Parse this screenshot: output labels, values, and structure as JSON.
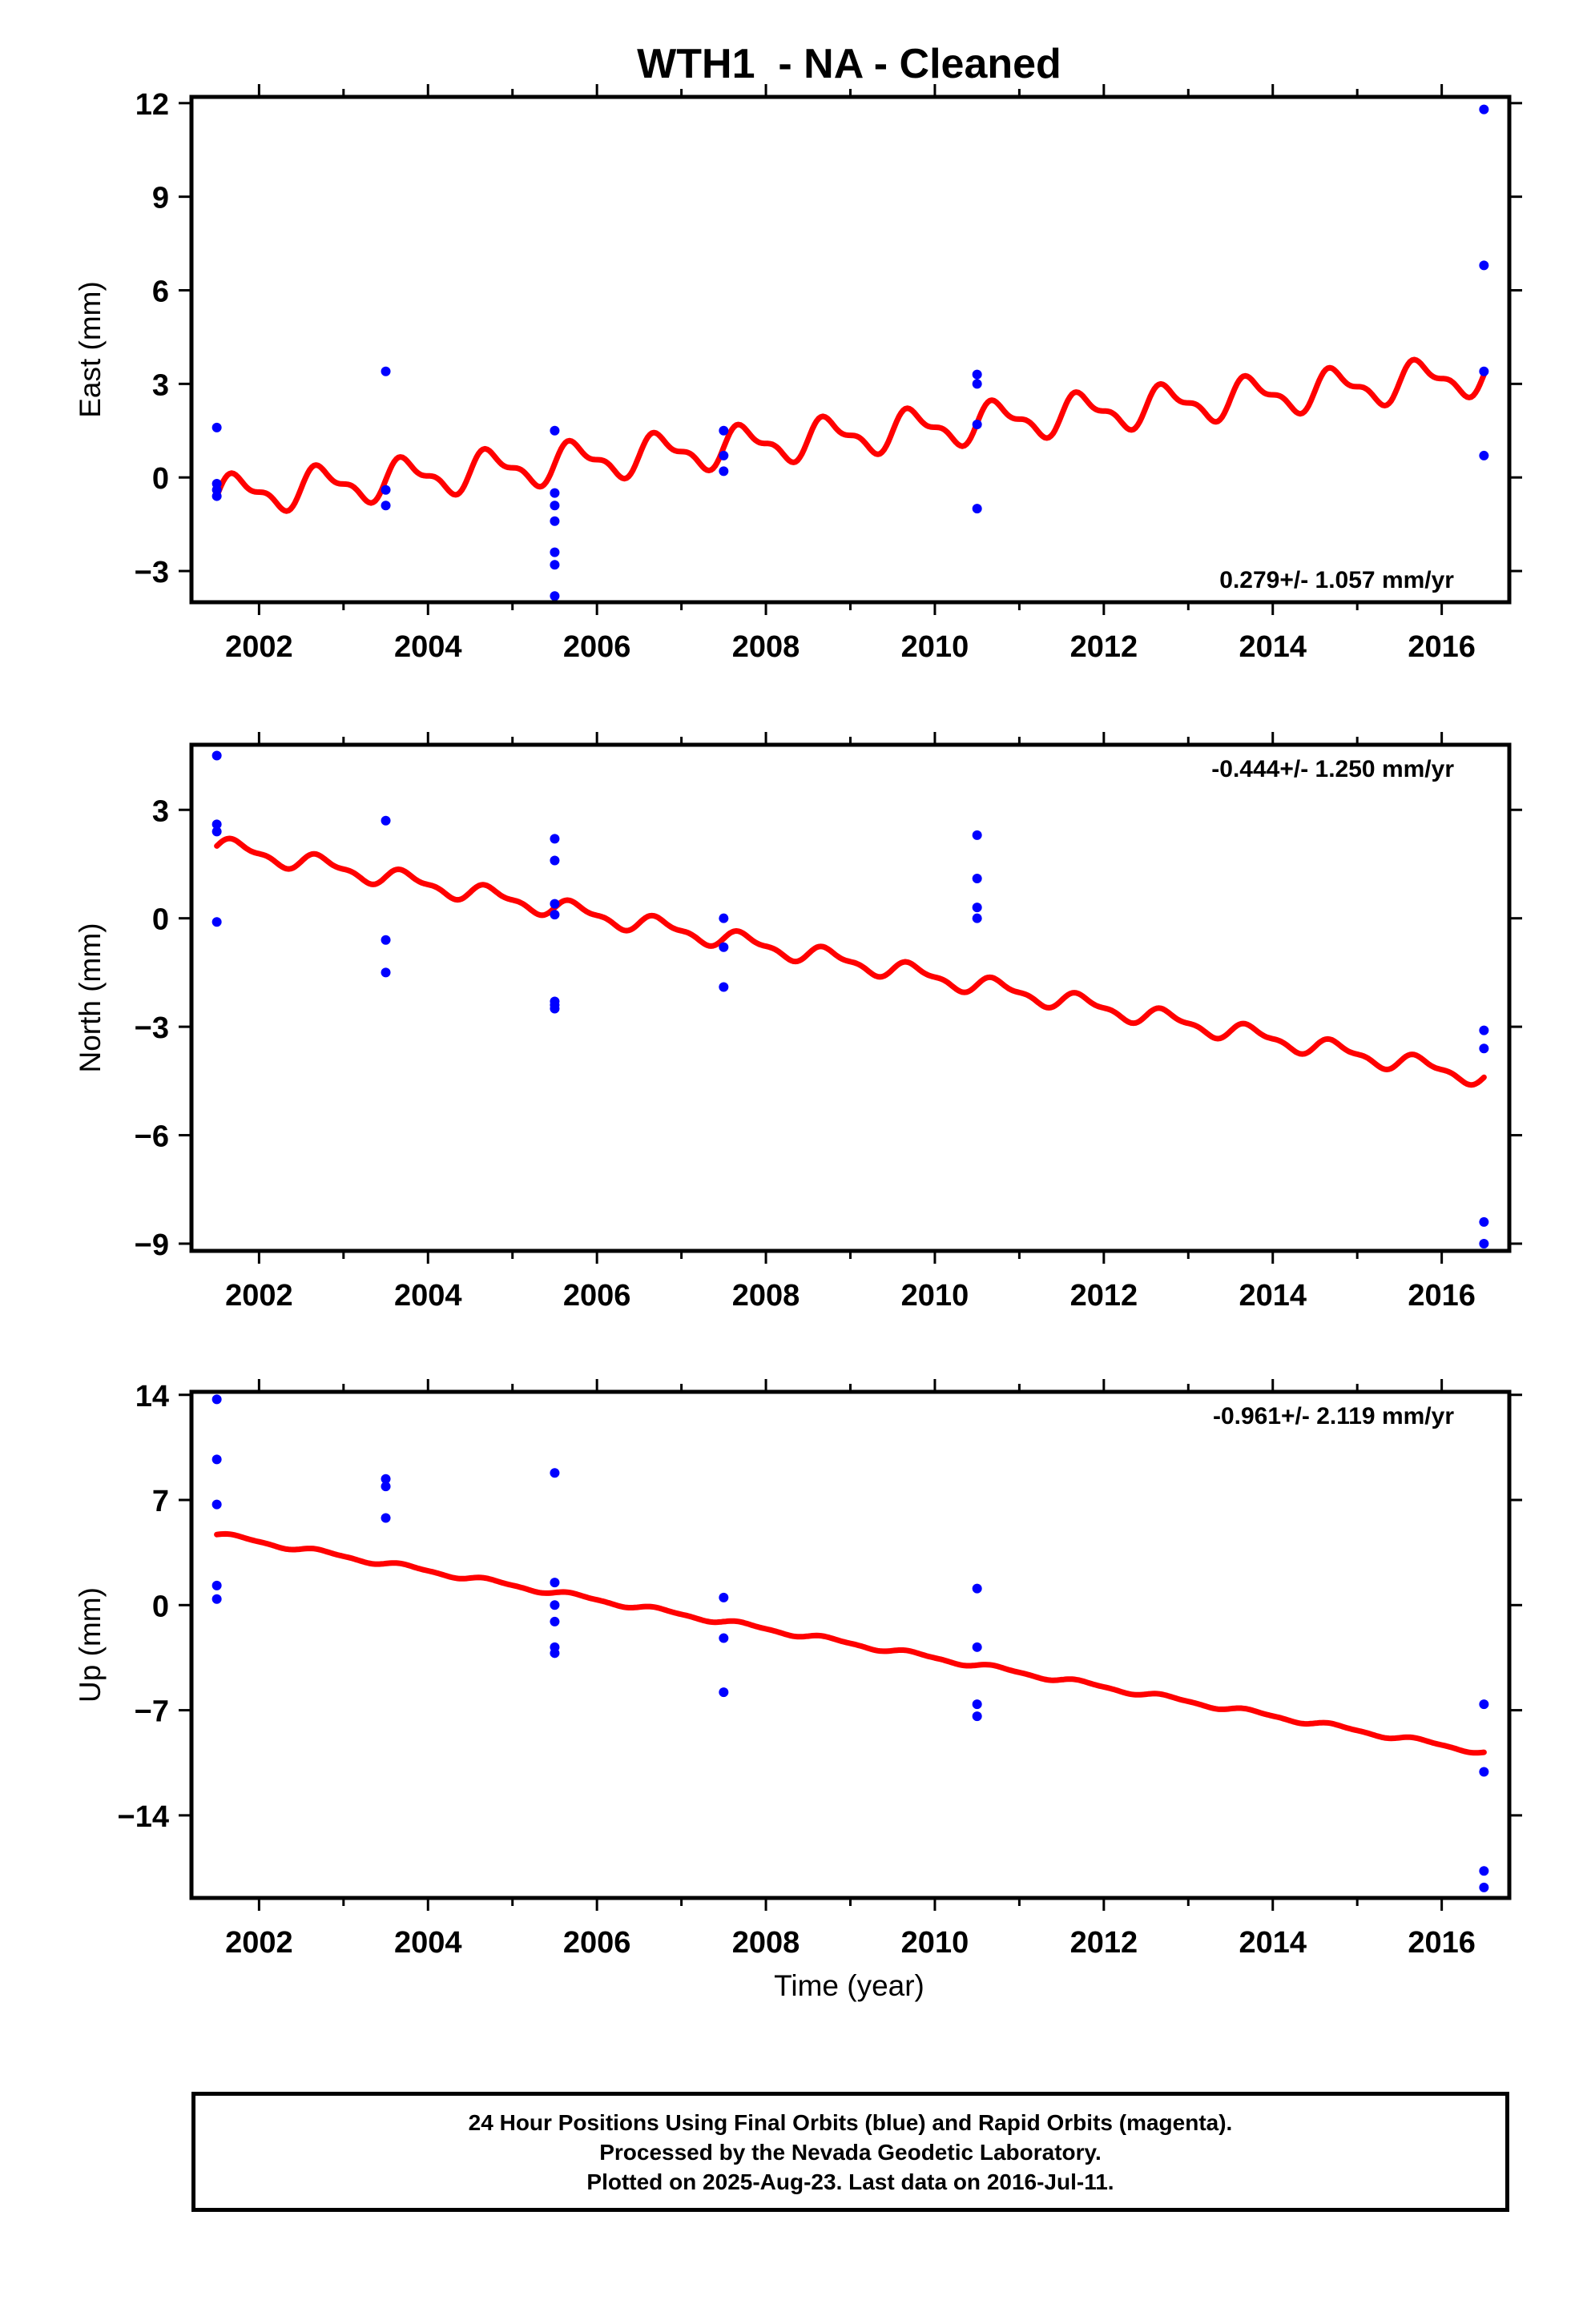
{
  "title": "WTH1  - NA - Cleaned",
  "colors": {
    "data_points": "#0000ff",
    "model_line": "#ff0000",
    "axes": "#000000"
  },
  "x_axis": {
    "label": "Time (year)",
    "range": [
      2001.2,
      2016.8
    ],
    "ticks": [
      2002,
      2004,
      2006,
      2008,
      2010,
      2012,
      2014,
      2016
    ],
    "tick_labels": [
      "2002",
      "2004",
      "2006",
      "2008",
      "2010",
      "2012",
      "2014",
      "2016"
    ]
  },
  "caption": {
    "line1": "24 Hour Positions Using Final Orbits (blue) and Rapid Orbits (magenta).",
    "line2": "Processed by the Nevada Geodetic Laboratory.",
    "line3": "Plotted on 2025-Aug-23. Last data on 2016-Jul-11."
  },
  "chart_data": [
    {
      "type": "scatter",
      "ylabel": "East (mm)",
      "ylim": [
        -4.0,
        12.2
      ],
      "yticks": [
        -3,
        0,
        3,
        6,
        9,
        12
      ],
      "ytick_labels": [
        "−3",
        "0",
        "3",
        "6",
        "9",
        "12"
      ],
      "rate_label": "0.279+/- 1.057 mm/yr",
      "rate_position": "bottom-right",
      "points": [
        [
          2001.5,
          1.6
        ],
        [
          2001.5,
          -0.2
        ],
        [
          2001.5,
          -0.4
        ],
        [
          2001.5,
          -0.6
        ],
        [
          2003.5,
          3.4
        ],
        [
          2003.5,
          -0.4
        ],
        [
          2003.5,
          -0.9
        ],
        [
          2005.5,
          1.5
        ],
        [
          2005.5,
          -0.5
        ],
        [
          2005.5,
          -0.9
        ],
        [
          2005.5,
          -1.4
        ],
        [
          2005.5,
          -2.4
        ],
        [
          2005.5,
          -2.8
        ],
        [
          2005.5,
          -3.8
        ],
        [
          2007.5,
          1.5
        ],
        [
          2007.5,
          0.7
        ],
        [
          2007.5,
          0.2
        ],
        [
          2010.5,
          3.3
        ],
        [
          2010.5,
          3.0
        ],
        [
          2010.5,
          1.7
        ],
        [
          2010.5,
          -1.0
        ],
        [
          2016.5,
          11.8
        ],
        [
          2016.5,
          6.8
        ],
        [
          2016.5,
          3.4
        ],
        [
          2016.5,
          0.7
        ]
      ],
      "model": {
        "t_start": 2001.5,
        "t_end": 2016.5,
        "y_start": -0.6,
        "y_end": 3.3,
        "annual_amplitude": 0.55,
        "semiannual_amplitude": 0.25
      }
    },
    {
      "type": "scatter",
      "ylabel": "North (mm)",
      "ylim": [
        -9.2,
        4.8
      ],
      "yticks": [
        -9,
        -6,
        -3,
        0,
        3
      ],
      "ytick_labels": [
        "−9",
        "−6",
        "−3",
        "0",
        "3"
      ],
      "rate_label": "-0.444+/- 1.250 mm/yr",
      "rate_position": "top-right",
      "points": [
        [
          2001.5,
          4.5
        ],
        [
          2001.5,
          2.6
        ],
        [
          2001.5,
          2.4
        ],
        [
          2001.5,
          -0.1
        ],
        [
          2003.5,
          2.7
        ],
        [
          2003.5,
          -0.6
        ],
        [
          2003.5,
          -1.5
        ],
        [
          2005.5,
          2.2
        ],
        [
          2005.5,
          1.6
        ],
        [
          2005.5,
          0.4
        ],
        [
          2005.5,
          0.1
        ],
        [
          2005.5,
          -2.3
        ],
        [
          2005.5,
          -2.4
        ],
        [
          2005.5,
          -2.5
        ],
        [
          2007.5,
          0.0
        ],
        [
          2007.5,
          -0.8
        ],
        [
          2007.5,
          -1.9
        ],
        [
          2010.5,
          2.3
        ],
        [
          2010.5,
          1.1
        ],
        [
          2010.5,
          0.3
        ],
        [
          2010.5,
          0.0
        ],
        [
          2016.5,
          -3.1
        ],
        [
          2016.5,
          -3.6
        ],
        [
          2016.5,
          -8.4
        ],
        [
          2016.5,
          -9.0
        ]
      ],
      "model": {
        "t_start": 2001.5,
        "t_end": 2016.5,
        "y_start": 2.0,
        "y_end": -4.4,
        "annual_amplitude": 0.22,
        "semiannual_amplitude": 0.1
      }
    },
    {
      "type": "scatter",
      "ylabel": "Up (mm)",
      "ylim": [
        -19.5,
        14.2
      ],
      "yticks": [
        -14,
        -7,
        0,
        7,
        14
      ],
      "ytick_labels": [
        "−14",
        "−7",
        "0",
        "7",
        "14"
      ],
      "rate_label": "-0.961+/- 2.119 mm/yr",
      "rate_position": "top-right",
      "points": [
        [
          2001.5,
          13.7
        ],
        [
          2001.5,
          9.7
        ],
        [
          2001.5,
          6.7
        ],
        [
          2001.5,
          1.3
        ],
        [
          2001.5,
          0.4
        ],
        [
          2003.5,
          8.4
        ],
        [
          2003.5,
          7.9
        ],
        [
          2003.5,
          5.8
        ],
        [
          2005.5,
          8.8
        ],
        [
          2005.5,
          1.5
        ],
        [
          2005.5,
          0.0
        ],
        [
          2005.5,
          -1.1
        ],
        [
          2005.5,
          -2.8
        ],
        [
          2005.5,
          -3.2
        ],
        [
          2007.5,
          0.5
        ],
        [
          2007.5,
          -2.2
        ],
        [
          2007.5,
          -5.8
        ],
        [
          2010.5,
          1.1
        ],
        [
          2010.5,
          -2.8
        ],
        [
          2010.5,
          -6.6
        ],
        [
          2010.5,
          -7.4
        ],
        [
          2016.5,
          -6.6
        ],
        [
          2016.5,
          -11.1
        ],
        [
          2016.5,
          -17.7
        ],
        [
          2016.5,
          -18.8
        ]
      ],
      "model": {
        "t_start": 2001.5,
        "t_end": 2016.5,
        "y_start": 4.7,
        "y_end": -9.8,
        "annual_amplitude": 0.15,
        "semiannual_amplitude": 0.05
      }
    }
  ]
}
